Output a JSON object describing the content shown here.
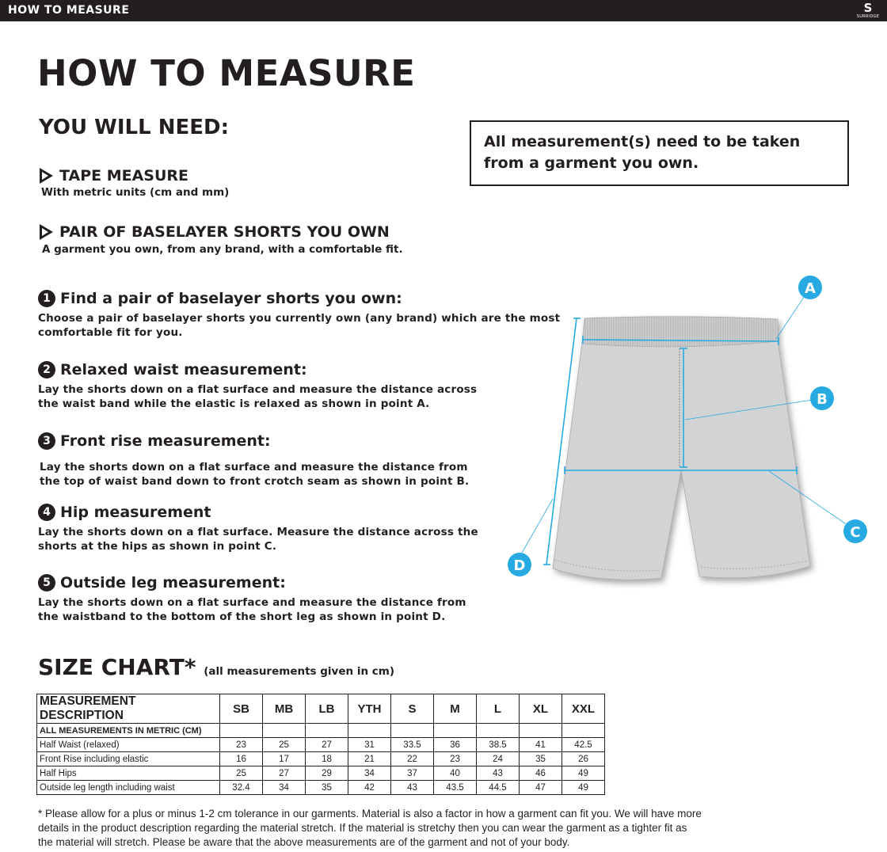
{
  "header": {
    "title": "HOW TO MEASURE",
    "logo_text": "SURRIDGE"
  },
  "page_title": "HOW TO MEASURE",
  "you_will_need": {
    "title": "YOU WILL NEED:",
    "items": [
      {
        "label": "TAPE MEASURE",
        "detail": "With metric units (cm and mm)"
      },
      {
        "label": "PAIR OF BASELAYER SHORTS YOU OWN",
        "detail": "A garment you own, from any brand, with a comfortable fit."
      }
    ]
  },
  "notice": "All measurement(s) need to be taken from a garment you own.",
  "steps": [
    {
      "number": "1",
      "title": "Find a pair of baselayer shorts you own:",
      "body": "Choose a pair of baselayer shorts you currently own (any brand) which are the most comfortable fit for you."
    },
    {
      "number": "2",
      "title": "Relaxed waist measurement:",
      "body": "Lay the shorts down on a flat surface and measure the distance across the waist band while the elastic is relaxed as shown in point A."
    },
    {
      "number": "3",
      "title": "Front rise measurement:",
      "body": "Lay the shorts down on a flat surface and measure the distance from the top of waist band down to front crotch seam as shown in point B."
    },
    {
      "number": "4",
      "title": "Hip measurement",
      "body": "Lay the shorts down on a flat surface. Measure the distance across the shorts at the hips as shown in point C."
    },
    {
      "number": "5",
      "title": "Outside leg measurement:",
      "body": "Lay the shorts down on a flat surface and measure the distance from the waistband to the bottom of the short leg as shown in point D."
    }
  ],
  "diagram": {
    "points": [
      "A",
      "B",
      "C",
      "D"
    ],
    "accent_color": "#27aae1",
    "garment_color": "#d1d3d4"
  },
  "size_chart": {
    "title": "SIZE CHART*",
    "subtitle": "(all measurements given in cm)",
    "header_desc": "MEASUREMENT DESCRIPTION",
    "sizes": [
      "SB",
      "MB",
      "LB",
      "YTH",
      "S",
      "M",
      "L",
      "XL",
      "XXL"
    ],
    "subheader": "ALL MEASUREMENTS IN METRIC (CM)",
    "rows": [
      {
        "label": "Half Waist (relaxed)",
        "values": [
          "23",
          "25",
          "27",
          "31",
          "33.5",
          "36",
          "38.5",
          "41",
          "42.5"
        ]
      },
      {
        "label": "Front Rise including elastic",
        "values": [
          "16",
          "17",
          "18",
          "21",
          "22",
          "23",
          "24",
          "35",
          "26"
        ]
      },
      {
        "label": "Half Hips",
        "values": [
          "25",
          "27",
          "29",
          "34",
          "37",
          "40",
          "43",
          "46",
          "49"
        ]
      },
      {
        "label": "Outside leg length including waist",
        "values": [
          "32.4",
          "34",
          "35",
          "42",
          "43",
          "43.5",
          "44.5",
          "47",
          "49"
        ]
      }
    ]
  },
  "footnote": "* Please allow for a plus or minus 1-2 cm tolerance in our garments. Material is also a factor in how a garment can fit you. We will have more details in the product description regarding the material stretch.  If the material is stretchy then you can wear the garment as a tighter fit as the material will stretch.  Please be aware that the above measurements are of the garment and not of your body."
}
